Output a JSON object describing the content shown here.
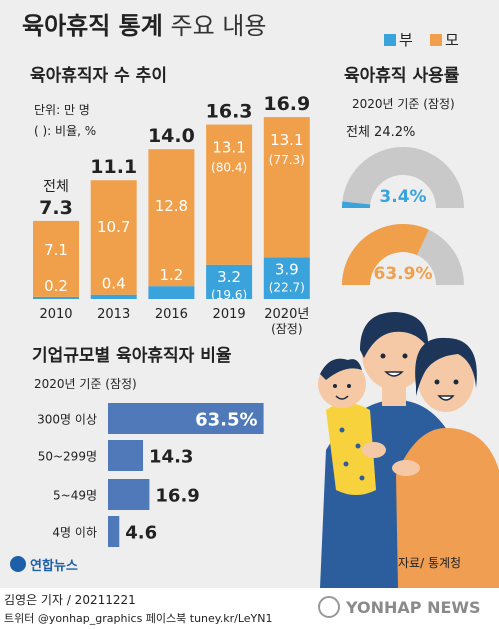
{
  "header": {
    "title_bold": "육아휴직 통계",
    "title_light": "주요 내용",
    "legend": [
      {
        "label": "부",
        "color": "#3aa3dc"
      },
      {
        "label": "모",
        "color": "#f0a04b"
      }
    ]
  },
  "colors": {
    "father": "#3aa3dc",
    "mother": "#f0a04b",
    "rest": "#c9c9c9",
    "hbar": "#4f79b8"
  },
  "chart_data": [
    {
      "type": "bar",
      "stacked": true,
      "title": "육아휴직자 수 추이",
      "unit_note": "단위: 만 명",
      "ratio_note": "( ): 비율, %",
      "total_prefix": "전체",
      "categories": [
        "2010",
        "2013",
        "2016",
        "2019",
        "2020년\n(잠정)"
      ],
      "totals": [
        7.3,
        11.1,
        14.0,
        16.3,
        16.9
      ],
      "total_labels": [
        "7.3",
        "11.1",
        "14.0",
        "16.3",
        "16.9"
      ],
      "series": [
        {
          "name": "부",
          "values": [
            0.2,
            0.4,
            1.2,
            3.2,
            3.9
          ],
          "labels": [
            "0.2",
            "0.4",
            "1.2",
            "3.2",
            "3.9"
          ],
          "ratios": [
            null,
            null,
            null,
            "(19.6)",
            "(22.7)"
          ]
        },
        {
          "name": "모",
          "values": [
            7.1,
            10.7,
            12.8,
            13.1,
            13.1
          ],
          "labels": [
            "7.1",
            "10.7",
            "12.8",
            "13.1",
            "13.1"
          ],
          "ratios": [
            null,
            null,
            null,
            "(80.4)",
            "(77.3)"
          ]
        }
      ]
    },
    {
      "type": "pie",
      "title": "육아휴직 사용률",
      "basis": "2020년 기준 (잠정)",
      "total_label": "전체 24.2%",
      "gauges": [
        {
          "name": "부",
          "value": 3.4,
          "label": "3.4%"
        },
        {
          "name": "모",
          "value": 63.9,
          "label": "63.9%"
        }
      ]
    },
    {
      "type": "bar",
      "orientation": "horizontal",
      "title": "기업규모별 육아휴직자 비율",
      "basis": "2020년 기준 (잠정)",
      "categories": [
        "300명 이상",
        "50~299명",
        "5~49명",
        "4명 이하"
      ],
      "values": [
        63.5,
        14.3,
        16.9,
        4.6
      ],
      "labels": [
        "63.5%",
        "14.3",
        "16.9",
        "4.6"
      ]
    }
  ],
  "source": "자료/ 통계청",
  "logo_text": "연합뉴스",
  "footer": {
    "line1": "김영은 기자 / 20211221",
    "line2": "트위터 @yonhap_graphics  페이스북 tuney.kr/LeYN1",
    "brand": "YONHAP NEWS"
  }
}
